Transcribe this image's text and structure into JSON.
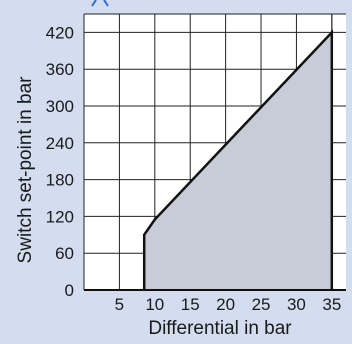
{
  "chart_data": {
    "type": "area",
    "xlabel": "Differential in bar",
    "ylabel": "Switch set-point in bar",
    "xlim": [
      0,
      37
    ],
    "ylim": [
      0,
      450
    ],
    "xticks": [
      5,
      10,
      15,
      20,
      25,
      30,
      35
    ],
    "yticks": [
      0,
      60,
      120,
      180,
      240,
      300,
      360,
      420
    ],
    "grid": true,
    "series": [
      {
        "x": [
          8.5,
          8.5,
          10,
          35,
          35
        ],
        "y": [
          0,
          90,
          115,
          420,
          0
        ]
      }
    ],
    "colors": {
      "background": "#d3ddef",
      "plot_area": "#ffffff",
      "fill": "#c8ccd6",
      "line": "#111111",
      "grid": "#222222"
    }
  }
}
